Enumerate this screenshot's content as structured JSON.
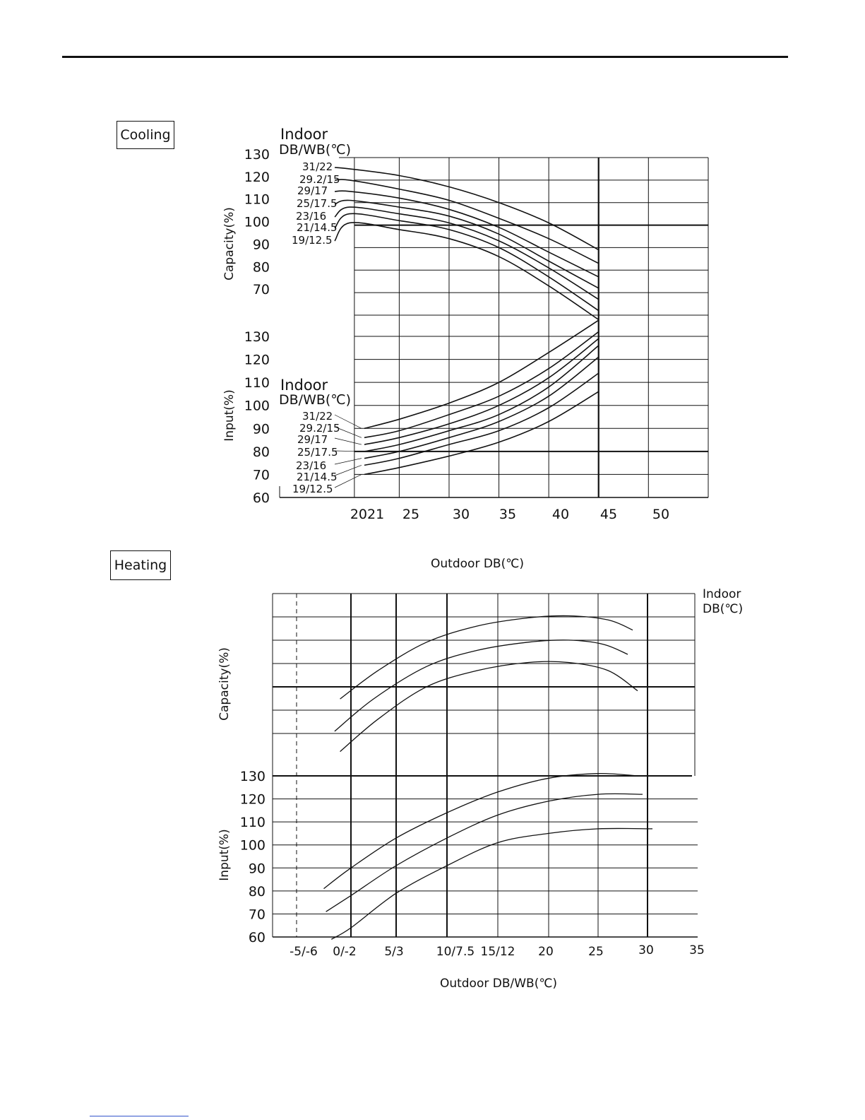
{
  "sections": {
    "cooling_label": "Cooling",
    "heating_label": "Heating"
  },
  "colors": {
    "ink": "#111111",
    "footer_link": "#3355cc"
  },
  "chart_data": [
    {
      "name_key": "cooling",
      "type": "line",
      "xlabel": "Outdoor  DB(℃)",
      "x_ticks": [
        "2021",
        "25",
        "30",
        "35",
        "40",
        "45",
        "50"
      ],
      "x_tick_values": [
        20.5,
        25,
        30,
        35,
        40,
        45,
        50
      ],
      "xlim": [
        13,
        56
      ],
      "capacity": {
        "ylabel": "Capacity(%)",
        "y_ticks": [
          "130",
          "120",
          "110",
          "100",
          "90",
          "80",
          "70"
        ],
        "ylim": [
          60,
          130
        ],
        "legend_title": [
          "Indoor",
          "DB/WB(℃)"
        ],
        "series": [
          {
            "name": "31/22",
            "x": [
              13,
              20,
              25,
              30,
              35,
              40,
              45
            ],
            "y": [
              126,
              125,
              122,
              117,
              110,
              101,
              89
            ]
          },
          {
            "name": "29.2/15",
            "x": [
              13,
              20,
              25,
              30,
              35,
              40,
              45
            ],
            "y": [
              122,
              120,
              116,
              111,
              103,
              94,
              83
            ]
          },
          {
            "name": "29/17",
            "x": [
              13,
              20,
              25,
              30,
              35,
              40,
              45
            ],
            "y": [
              117,
              115,
              112,
              107,
              99,
              88,
              77
            ]
          },
          {
            "name": "25/17.5",
            "x": [
              13,
              20,
              25,
              30,
              35,
              40,
              45
            ],
            "y": [
              113,
              111,
              108,
              104,
              96,
              84,
              72
            ]
          },
          {
            "name": "23/16",
            "x": [
              13,
              20,
              25,
              30,
              35,
              40,
              45
            ],
            "y": [
              110,
              108,
              105,
              101,
              93,
              81,
              67
            ]
          },
          {
            "name": "21/14.5",
            "x": [
              13,
              20,
              25,
              30,
              35,
              40,
              45
            ],
            "y": [
              107,
              105,
              102,
              98,
              90,
              77,
              62
            ]
          },
          {
            "name": "19/12.5",
            "x": [
              13,
              20,
              25,
              30,
              35,
              40,
              45
            ],
            "y": [
              103,
              101,
              98,
              94,
              86,
              73,
              58
            ]
          }
        ]
      },
      "input": {
        "ylabel": "Input(%)",
        "y_ticks": [
          "130",
          "120",
          "110",
          "100",
          "90",
          "80",
          "70",
          "60"
        ],
        "ylim": [
          60,
          130
        ],
        "legend_title": [
          "Indoor",
          "DB/WB(℃)"
        ],
        "series": [
          {
            "name": "31/22",
            "x": [
              21.5,
              25,
              30,
              35,
              40,
              45
            ],
            "y": [
              90,
              94,
              101,
              110,
              123,
              139
            ]
          },
          {
            "name": "29.2/15",
            "x": [
              21.5,
              25,
              30,
              35,
              40,
              45
            ],
            "y": [
              86,
              89,
              96,
              104,
              116,
              132
            ]
          },
          {
            "name": "29/17",
            "x": [
              21.5,
              25,
              30,
              35,
              40,
              45
            ],
            "y": [
              83,
              86,
              92,
              100,
              112,
              129
            ]
          },
          {
            "name": "25/17.5",
            "x": [
              21.5,
              25,
              30,
              35,
              40,
              45
            ],
            "y": [
              80,
              83,
              89,
              96,
              108,
              126
            ]
          },
          {
            "name": "23/16",
            "x": [
              21.5,
              25,
              30,
              35,
              40,
              45
            ],
            "y": [
              77,
              80,
              86,
              93,
              104,
              121
            ]
          },
          {
            "name": "21/14.5",
            "x": [
              21.5,
              25,
              30,
              35,
              40,
              45
            ],
            "y": [
              74,
              77,
              83,
              89,
              99,
              114
            ]
          },
          {
            "name": "19/12.5",
            "x": [
              21.5,
              25,
              30,
              35,
              40,
              45
            ],
            "y": [
              70,
              73,
              78,
              84,
              93,
              106
            ]
          }
        ]
      },
      "grid": true
    },
    {
      "name_key": "heating",
      "type": "line",
      "xlabel": "Outdoor  DB/WB(℃)",
      "x_ticks": [
        "-5/-6",
        "0/-2",
        "5/3",
        "10/7.5",
        "15/12",
        "20",
        "25",
        "30",
        "35"
      ],
      "x_tick_values": [
        -5,
        0,
        5,
        10,
        15,
        20,
        25,
        30,
        35
      ],
      "xlim": [
        -7.5,
        35
      ],
      "legend_title": [
        "Indoor",
        "DB(℃)"
      ],
      "capacity": {
        "ylabel": "Capacity(%)",
        "series": [
          {
            "x": [
              -1,
              3,
              8,
              13,
              18,
              22,
              26,
              28.5
            ],
            "y": [
              109,
              116,
              123,
              127,
              129,
              129.5,
              128.5,
              126
            ]
          },
          {
            "x": [
              -1.5,
              2.5,
              8,
              13,
              18,
              22,
              25.5,
              28
            ],
            "y": [
              101,
              109,
              117,
              121,
              123,
              123.5,
              122.5,
              120
            ]
          },
          {
            "x": [
              -1,
              3,
              8,
              13,
              18,
              22,
              26,
              29
            ],
            "y": [
              96,
              104,
              112,
              116,
              118,
              118,
              116,
              111
            ]
          }
        ]
      },
      "input": {
        "ylabel": "Input(%)",
        "y_ticks": [
          "130",
          "120",
          "110",
          "100",
          "90",
          "80",
          "70",
          "60"
        ],
        "ylim": [
          60,
          130
        ],
        "series": [
          {
            "x": [
              -2.5,
              0,
              5,
              10,
              15,
              20,
              25,
              29
            ],
            "y": [
              81,
              90,
              103,
              114,
              123,
              129,
              131,
              130
            ]
          },
          {
            "x": [
              -2.3,
              0,
              5,
              10,
              15,
              20,
              25,
              29.5
            ],
            "y": [
              71,
              78,
              91,
              103,
              113,
              119,
              122,
              122
            ]
          },
          {
            "x": [
              -1.8,
              0,
              5,
              10,
              15,
              20,
              25,
              30.5
            ],
            "y": [
              59,
              64,
              79,
              91,
              101,
              105,
              107,
              107
            ]
          }
        ]
      },
      "grid": true
    }
  ]
}
